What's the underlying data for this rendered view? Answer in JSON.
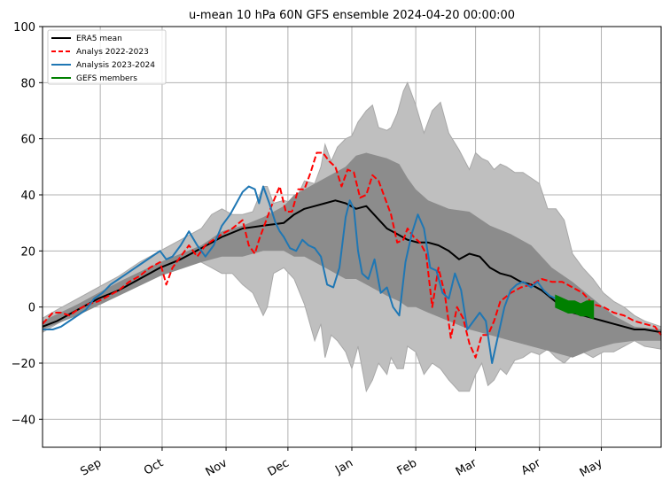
{
  "chart_data": {
    "type": "line",
    "title": "u-mean 10 hPa 60N GFS ensemble 2024-04-20 00:00:00",
    "xlabel": "",
    "ylabel": "",
    "x_unit": "days since Aug 1 (2023)",
    "xlim": [
      3,
      303
    ],
    "ylim": [
      -50,
      100
    ],
    "grid": true,
    "yticks": [
      -40,
      -20,
      0,
      20,
      40,
      60,
      80,
      100
    ],
    "xticks": [
      {
        "label": "Sep",
        "x": 31
      },
      {
        "label": "Oct",
        "x": 61
      },
      {
        "label": "Nov",
        "x": 92
      },
      {
        "label": "Dec",
        "x": 122
      },
      {
        "label": "Jan",
        "x": 153
      },
      {
        "label": "Feb",
        "x": 184
      },
      {
        "label": "Mar",
        "x": 213
      },
      {
        "label": "Apr",
        "x": 244
      },
      {
        "label": "May",
        "x": 274
      }
    ],
    "legend": {
      "position": "top-left",
      "entries": [
        {
          "label": "ERA5 mean",
          "color": "#000000",
          "style": "solid"
        },
        {
          "label": "Analys 2022-2023",
          "color": "#ff0000",
          "style": "dashed"
        },
        {
          "label": "Analysis 2023-2024",
          "color": "#1f77b4",
          "style": "solid"
        },
        {
          "label": "GEFS members",
          "color": "#008000",
          "style": "solid"
        }
      ]
    },
    "bands": [
      {
        "name": "ERA5 min-max range",
        "color": "#bfbfbf",
        "x": [
          3,
          10,
          20,
          30,
          40,
          50,
          60,
          70,
          75,
          80,
          85,
          90,
          95,
          100,
          105,
          110,
          112,
          115,
          120,
          125,
          130,
          135,
          138,
          140,
          143,
          146,
          150,
          153,
          156,
          160,
          163,
          166,
          170,
          172,
          175,
          178,
          180,
          184,
          188,
          192,
          196,
          200,
          205,
          210,
          213,
          216,
          219,
          222,
          225,
          228,
          232,
          236,
          240,
          244,
          248,
          252,
          256,
          260,
          265,
          270,
          275,
          280,
          285,
          290,
          295,
          303
        ],
        "upper": [
          -4,
          -1,
          3,
          7,
          11,
          16,
          20,
          24,
          26,
          28,
          33,
          35,
          33,
          33,
          34,
          43,
          43,
          37,
          38,
          37,
          45,
          44,
          50,
          58,
          52,
          57,
          60,
          61,
          66,
          70,
          72,
          64,
          63,
          64,
          69,
          77,
          80,
          72,
          62,
          70,
          73,
          62,
          56,
          49,
          55,
          53,
          52,
          49,
          51,
          50,
          48,
          48,
          46,
          44,
          35,
          35,
          31,
          19,
          14,
          10,
          5,
          2,
          0,
          -3,
          -5,
          -7
        ],
        "lower": [
          -9,
          -6,
          -2,
          2,
          5,
          9,
          12,
          14,
          16,
          16,
          14,
          12,
          12,
          8,
          5,
          -3,
          0,
          12,
          14,
          10,
          1,
          -12,
          -6,
          -18,
          -10,
          -12,
          -16,
          -22,
          -14,
          -30,
          -26,
          -20,
          -24,
          -18,
          -22,
          -22,
          -14,
          -16,
          -24,
          -20,
          -22,
          -26,
          -30,
          -30,
          -24,
          -20,
          -28,
          -26,
          -22,
          -24,
          -19,
          -18,
          -16,
          -17,
          -15,
          -18,
          -20,
          -17,
          -16,
          -18,
          -16,
          -16,
          -14,
          -12,
          -14,
          -15
        ]
      },
      {
        "name": "ERA5 inner range",
        "color": "#8c8c8c",
        "x": [
          3,
          20,
          40,
          60,
          80,
          90,
          100,
          110,
          120,
          125,
          130,
          140,
          150,
          155,
          160,
          170,
          176,
          180,
          184,
          190,
          200,
          210,
          220,
          230,
          240,
          250,
          260,
          270,
          280,
          290,
          303
        ],
        "upper": [
          -5,
          1,
          9,
          16,
          22,
          27,
          29,
          32,
          36,
          40,
          42,
          46,
          50,
          54,
          55,
          53,
          51,
          46,
          42,
          38,
          35,
          34,
          29,
          26,
          22,
          14,
          9,
          3,
          -3,
          -7,
          -8
        ],
        "lower": [
          -8,
          -3,
          4,
          11,
          16,
          18,
          18,
          20,
          20,
          18,
          18,
          14,
          10,
          10,
          8,
          4,
          2,
          0,
          0,
          -2,
          -5,
          -8,
          -10,
          -12,
          -14,
          -16,
          -18,
          -15,
          -13,
          -12,
          -12
        ]
      }
    ],
    "series": [
      {
        "name": "ERA5 mean",
        "color": "#000000",
        "style": "solid",
        "x": [
          3,
          10,
          20,
          30,
          40,
          50,
          60,
          70,
          80,
          90,
          100,
          110,
          120,
          125,
          130,
          135,
          140,
          145,
          150,
          155,
          160,
          165,
          170,
          175,
          180,
          185,
          190,
          195,
          200,
          205,
          210,
          215,
          220,
          225,
          230,
          235,
          240,
          245,
          250,
          255,
          260,
          265,
          270,
          275,
          280,
          285,
          290,
          295,
          303
        ],
        "y": [
          -7,
          -5,
          -1,
          3,
          6,
          10,
          14,
          17,
          21,
          25,
          28,
          29,
          30,
          33,
          35,
          36,
          37,
          38,
          37,
          35,
          36,
          32,
          28,
          26,
          24,
          23,
          23,
          22,
          20,
          17,
          19,
          18,
          14,
          12,
          11,
          9,
          8,
          6,
          3,
          0,
          -2,
          -3,
          -4,
          -5,
          -6,
          -7,
          -8,
          -8,
          -9
        ]
      },
      {
        "name": "Analys 2022-2023",
        "color": "#ff0000",
        "style": "dashed",
        "x": [
          3,
          8,
          12,
          16,
          20,
          25,
          30,
          35,
          40,
          45,
          50,
          55,
          60,
          63,
          66,
          70,
          74,
          78,
          82,
          86,
          90,
          95,
          100,
          103,
          106,
          108,
          111,
          114,
          118,
          121,
          124,
          127,
          130,
          133,
          136,
          139,
          142,
          145,
          148,
          151,
          154,
          157,
          160,
          163,
          166,
          169,
          172,
          175,
          178,
          180,
          183,
          186,
          189,
          192,
          195,
          198,
          201,
          204,
          207,
          210,
          213,
          216,
          219,
          222,
          225,
          230,
          235,
          240,
          245,
          250,
          255,
          260,
          265,
          270,
          275,
          280,
          285,
          290,
          295,
          300,
          303
        ],
        "y": [
          -6,
          -2,
          -2,
          -3,
          -1,
          1,
          2,
          4,
          6,
          9,
          11,
          14,
          16,
          8,
          14,
          18,
          22,
          18,
          22,
          24,
          26,
          28,
          31,
          22,
          19,
          24,
          30,
          36,
          43,
          34,
          34,
          42,
          42,
          48,
          55,
          55,
          52,
          50,
          43,
          49,
          48,
          39,
          40,
          47,
          45,
          39,
          33,
          23,
          24,
          28,
          25,
          23,
          19,
          0,
          14,
          5,
          -11,
          0,
          -4,
          -13,
          -18,
          -10,
          -10,
          -5,
          2,
          5,
          7,
          8,
          10,
          9,
          9,
          7,
          5,
          1,
          0,
          -2,
          -3,
          -5,
          -6,
          -7,
          -10
        ]
      },
      {
        "name": "Analysis 2023-2024",
        "color": "#1f77b4",
        "style": "solid",
        "x": [
          3,
          8,
          12,
          16,
          20,
          24,
          28,
          32,
          36,
          40,
          44,
          48,
          52,
          56,
          60,
          63,
          66,
          70,
          74,
          78,
          82,
          86,
          90,
          94,
          97,
          100,
          103,
          106,
          108,
          110,
          113,
          116,
          118,
          120,
          123,
          126,
          129,
          132,
          135,
          138,
          141,
          144,
          147,
          150,
          152,
          154,
          156,
          158,
          161,
          164,
          167,
          170,
          173,
          176,
          179,
          182,
          185,
          188,
          191,
          194,
          197,
          200,
          203,
          206,
          209,
          212,
          215,
          218,
          221,
          224,
          227,
          230,
          233,
          236,
          240,
          243,
          246,
          249,
          252
        ],
        "y": [
          -8,
          -8,
          -7,
          -5,
          -3,
          -1,
          3,
          5,
          8,
          10,
          12,
          14,
          16,
          18,
          20,
          17,
          18,
          22,
          27,
          22,
          18,
          22,
          29,
          33,
          37,
          41,
          43,
          42,
          37,
          43,
          37,
          30,
          27,
          25,
          21,
          20,
          24,
          22,
          21,
          18,
          8,
          7,
          14,
          32,
          38,
          35,
          20,
          12,
          10,
          17,
          5,
          7,
          0,
          -3,
          16,
          26,
          33,
          28,
          14,
          13,
          5,
          3,
          12,
          6,
          -8,
          -5,
          -2,
          -5,
          -20,
          -10,
          0,
          6,
          8,
          9,
          7,
          9,
          6,
          4,
          3
        ]
      },
      {
        "name": "GEFS members",
        "color": "#008000",
        "style": "filled-spread",
        "x": [
          252,
          255,
          258,
          261,
          264,
          267,
          270
        ],
        "upper": [
          4,
          3,
          2,
          2,
          1,
          2,
          2
        ],
        "lower": [
          0,
          -1,
          -2,
          -2,
          -3,
          -3,
          -4
        ]
      }
    ]
  }
}
